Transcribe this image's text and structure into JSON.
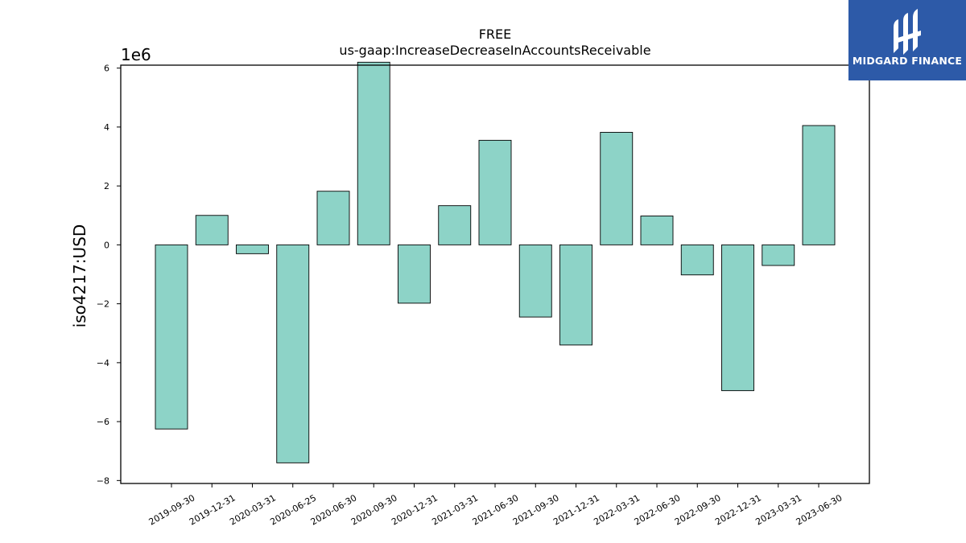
{
  "chart_data": {
    "type": "bar",
    "title": "FREE",
    "subtitle": "us-gaap:IncreaseDecreaseInAccountsReceivable",
    "ylabel": "iso4217:USD",
    "xlabel": "",
    "scale_label": "1e6",
    "scale": 1000000,
    "ylim": [
      -8.1,
      6.1
    ],
    "yticks": [
      -8,
      -6,
      -4,
      -2,
      0,
      2,
      4,
      6
    ],
    "ytick_labels": [
      "−8",
      "−6",
      "−4",
      "−2",
      "0",
      "2",
      "4",
      "6"
    ],
    "categories": [
      "2019-09-30",
      "2019-12-31",
      "2020-03-31",
      "2020-06-25",
      "2020-06-30",
      "2020-09-30",
      "2020-12-31",
      "2021-03-31",
      "2021-06-30",
      "2021-09-30",
      "2021-12-31",
      "2022-03-31",
      "2022-06-30",
      "2022-09-30",
      "2022-12-31",
      "2023-03-31",
      "2023-06-30"
    ],
    "values": [
      -6.25,
      1.0,
      -0.3,
      -7.4,
      1.82,
      6.2,
      -1.98,
      1.33,
      3.55,
      -2.45,
      -3.4,
      3.82,
      0.98,
      -1.02,
      -4.95,
      -0.7,
      4.05
    ],
    "bar_color": "#8dd3c7",
    "edge_color": "#000000",
    "grid": false,
    "legend": "none"
  },
  "logo": {
    "text": "MIDGARD FINANCE",
    "background": "#2d5aa8"
  }
}
